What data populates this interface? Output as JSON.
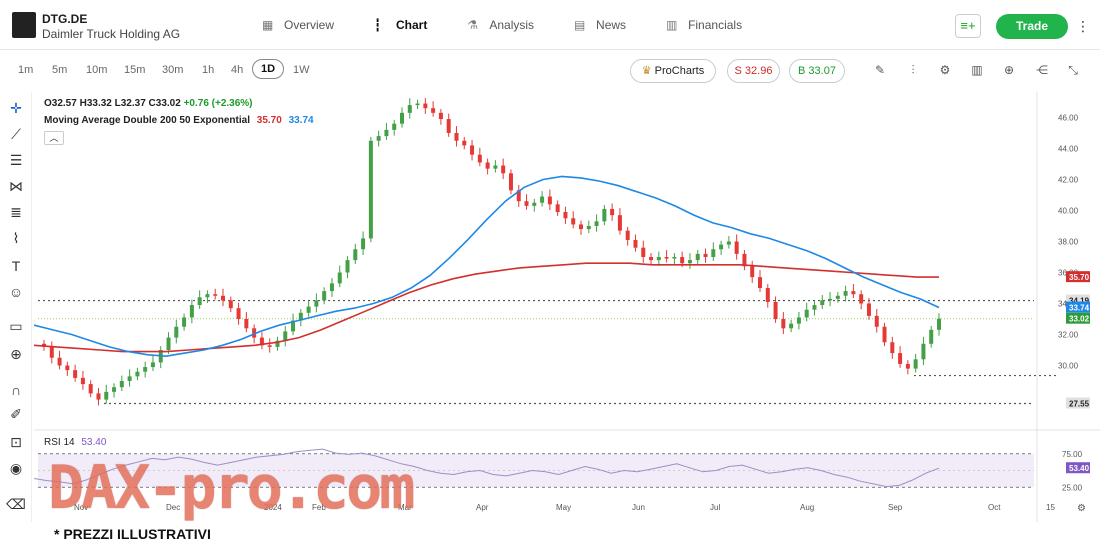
{
  "header": {
    "ticker": "DTG.DE",
    "company": "Daimler Truck Holding AG",
    "nav": [
      {
        "label": "Overview",
        "icon": "grid-icon",
        "active": false
      },
      {
        "label": "Chart",
        "icon": "candle-icon",
        "active": true
      },
      {
        "label": "Analysis",
        "icon": "flask-icon",
        "active": false
      },
      {
        "label": "News",
        "icon": "news-icon",
        "active": false
      },
      {
        "label": "Financials",
        "icon": "bars-icon",
        "active": false
      }
    ],
    "trade_label": "Trade"
  },
  "toolbar": {
    "timeframes": [
      "1m",
      "5m",
      "10m",
      "15m",
      "30m",
      "1h",
      "4h",
      "1D",
      "1W"
    ],
    "active_timeframe": "1D",
    "prochart_label": "ProCharts",
    "sell_label": "S 32.96",
    "buy_label": "B 33.07"
  },
  "legend": {
    "o": "O32.57",
    "h": "H33.32",
    "l": "L32.37",
    "c": "C33.02",
    "change": "+0.76 (+2.36%)",
    "ma_label": "Moving Average Double 200 50 Exponential",
    "ma200": "35.70",
    "ma50": "33.74"
  },
  "rsi": {
    "label": "RSI 14",
    "value": "53.40"
  },
  "watermark": "DAX-pro.com",
  "footnote": "* PREZZI ILLUSTRATIVI",
  "chart_data": {
    "type": "candlestick",
    "y_ticks": [
      30,
      32,
      34,
      36,
      38,
      40,
      42,
      44,
      46
    ],
    "x_ticks": [
      "Nov",
      "Dec",
      "2024",
      "Feb",
      "Mar",
      "Apr",
      "May",
      "Jun",
      "Jul",
      "Aug",
      "Sep",
      "Oct",
      "15"
    ],
    "ylim": [
      27,
      47
    ],
    "price_labels": [
      {
        "value": 35.7,
        "text": "35.70",
        "color": "#d32f2f"
      },
      {
        "value": 34.19,
        "text": "34.19",
        "color": "#e0e0e0"
      },
      {
        "value": 33.74,
        "text": "33.74",
        "color": "#1e88e5"
      },
      {
        "value": 33.02,
        "text": "33.02",
        "color": "#2e9b3a"
      },
      {
        "value": 27.55,
        "text": "27.55",
        "color": "#e0e0e0"
      }
    ],
    "dotted_levels": [
      34.19,
      29.35,
      27.55
    ],
    "rsi_ticks": [
      "75.00",
      "25.00"
    ],
    "rsi_label": "53.40",
    "close_series": [
      31.2,
      30.5,
      30.0,
      29.7,
      29.2,
      28.8,
      28.2,
      27.8,
      28.3,
      28.6,
      29.0,
      29.3,
      29.6,
      29.9,
      30.2,
      31.0,
      31.8,
      32.5,
      33.1,
      33.9,
      34.4,
      34.6,
      34.5,
      34.2,
      33.7,
      33.0,
      32.4,
      31.8,
      31.3,
      31.2,
      31.6,
      32.2,
      32.9,
      33.4,
      33.8,
      34.2,
      34.8,
      35.3,
      36.0,
      36.8,
      37.5,
      38.2,
      44.5,
      44.8,
      45.2,
      45.6,
      46.3,
      46.8,
      46.9,
      46.6,
      46.3,
      45.9,
      45.0,
      44.5,
      44.2,
      43.6,
      43.1,
      42.7,
      42.9,
      42.4,
      41.3,
      40.6,
      40.3,
      40.5,
      40.9,
      40.4,
      39.9,
      39.5,
      39.1,
      38.8,
      39.0,
      39.3,
      40.1,
      39.7,
      38.7,
      38.1,
      37.6,
      37.0,
      36.8,
      37.0,
      36.9,
      37.0,
      36.6,
      36.8,
      37.2,
      37.0,
      37.5,
      37.8,
      38.0,
      37.2,
      36.4,
      35.7,
      35.0,
      34.1,
      33.0,
      32.4,
      32.7,
      33.1,
      33.6,
      33.9,
      34.2,
      34.3,
      34.5,
      34.8,
      34.6,
      34.0,
      33.2,
      32.5,
      31.5,
      30.8,
      30.1,
      29.8,
      30.4,
      31.4,
      32.3,
      33.02
    ],
    "ma50": [
      32.6,
      32.3,
      32.0,
      31.6,
      31.2,
      30.9,
      30.7,
      30.6,
      30.8,
      31.0,
      31.3,
      31.7,
      32.2,
      32.6,
      32.9,
      33.2,
      33.5,
      33.7,
      34.0,
      34.4,
      35.0,
      35.8,
      36.9,
      38.1,
      39.4,
      40.6,
      41.5,
      42.0,
      42.2,
      42.1,
      41.9,
      41.6,
      41.2,
      40.8,
      40.3,
      39.7,
      39.2,
      38.9,
      38.5,
      38.2,
      37.8,
      37.4,
      36.9,
      36.3,
      35.7,
      35.2,
      34.7,
      34.3,
      33.74
    ],
    "ma200": [
      31.3,
      31.2,
      31.1,
      31.0,
      30.9,
      30.9,
      30.9,
      31.0,
      31.1,
      31.2,
      31.3,
      31.5,
      31.8,
      32.3,
      32.9,
      33.5,
      34.1,
      34.7,
      35.2,
      35.6,
      35.9,
      36.1,
      36.3,
      36.4,
      36.5,
      36.6,
      36.6,
      36.6,
      36.5,
      36.5,
      36.5,
      36.5,
      36.5,
      36.4,
      36.3,
      36.2,
      36.1,
      36.0,
      35.9,
      35.8,
      35.7,
      35.7
    ],
    "rsi_series": [
      38,
      35,
      33,
      30,
      36,
      44,
      52,
      58,
      63,
      68,
      66,
      70,
      67,
      62,
      58,
      62,
      66,
      70,
      72,
      74,
      78,
      80,
      82,
      76,
      74,
      76,
      72,
      66,
      60,
      56,
      50,
      46,
      44,
      48,
      50,
      44,
      42,
      46,
      50,
      48,
      44,
      50,
      56,
      52,
      46,
      50,
      48,
      52,
      56,
      60,
      54,
      48,
      50,
      56,
      58,
      52,
      46,
      48,
      52,
      54,
      50,
      44,
      40,
      34,
      30,
      26,
      28,
      36,
      46,
      53.4
    ]
  }
}
